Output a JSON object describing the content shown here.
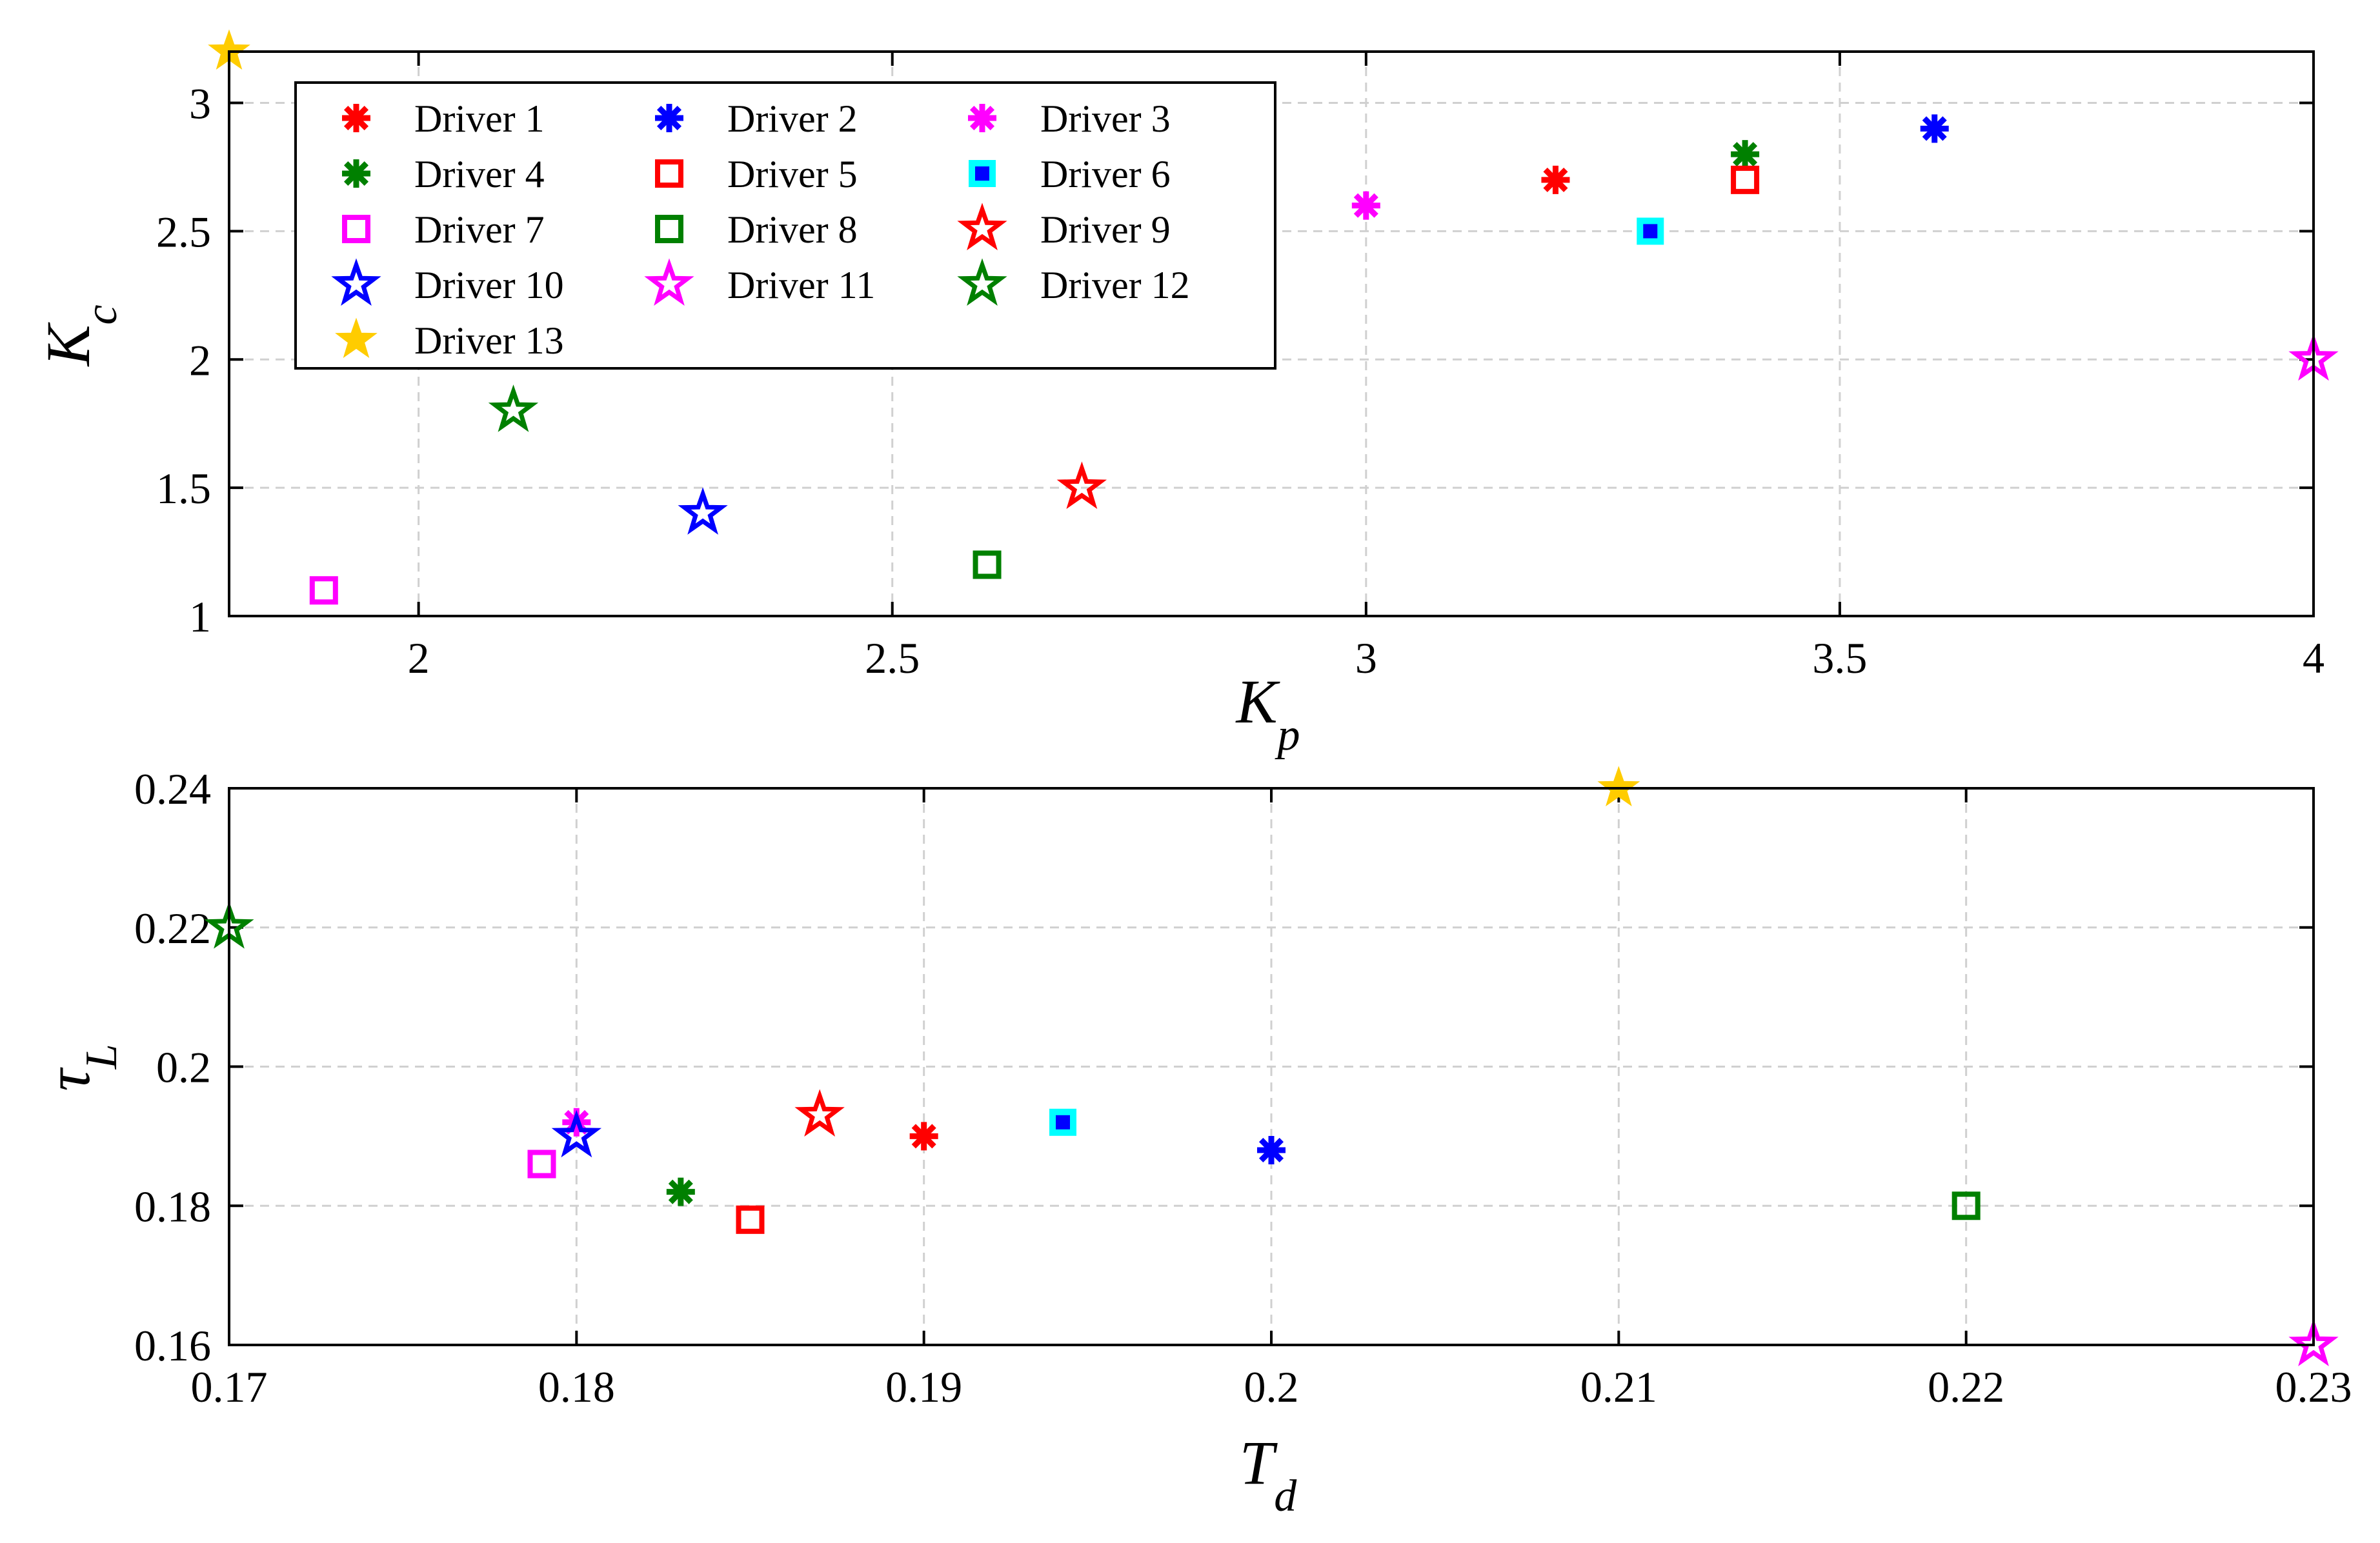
{
  "chart_data": [
    {
      "type": "scatter",
      "xlabel_main": "K",
      "xlabel_sub": "p",
      "ylabel_main": "K",
      "ylabel_sub": "c",
      "xlim": [
        1.8,
        4.0
      ],
      "ylim": [
        1.0,
        3.2
      ],
      "xticks": [
        "2",
        "2.5",
        "3",
        "3.5",
        "4"
      ],
      "xtick_values": [
        2,
        2.5,
        3,
        3.5,
        4
      ],
      "yticks": [
        "1",
        "1.5",
        "2",
        "2.5",
        "3"
      ],
      "ytick_values": [
        1,
        1.5,
        2,
        2.5,
        3
      ],
      "grid": true,
      "legend_position": "top-left",
      "points": [
        {
          "name": "Driver 1",
          "x": 3.2,
          "y": 2.7
        },
        {
          "name": "Driver 2",
          "x": 3.6,
          "y": 2.9
        },
        {
          "name": "Driver 3",
          "x": 3.0,
          "y": 2.6
        },
        {
          "name": "Driver 4",
          "x": 3.4,
          "y": 2.8
        },
        {
          "name": "Driver 5",
          "x": 3.4,
          "y": 2.7
        },
        {
          "name": "Driver 6",
          "x": 3.3,
          "y": 2.5
        },
        {
          "name": "Driver 7",
          "x": 1.9,
          "y": 1.1
        },
        {
          "name": "Driver 8",
          "x": 2.6,
          "y": 1.2
        },
        {
          "name": "Driver 9",
          "x": 2.7,
          "y": 1.5
        },
        {
          "name": "Driver 10",
          "x": 2.3,
          "y": 1.4
        },
        {
          "name": "Driver 11",
          "x": 4.0,
          "y": 2.0
        },
        {
          "name": "Driver 12",
          "x": 2.1,
          "y": 1.8
        },
        {
          "name": "Driver 13",
          "x": 1.8,
          "y": 3.2
        }
      ]
    },
    {
      "type": "scatter",
      "xlabel_main": "T",
      "xlabel_sub": "d",
      "ylabel_main": "τ",
      "ylabel_sub": "L",
      "xlim": [
        0.17,
        0.23
      ],
      "ylim": [
        0.16,
        0.24
      ],
      "xticks": [
        "0.17",
        "0.18",
        "0.19",
        "0.2",
        "0.21",
        "0.22",
        "0.23"
      ],
      "xtick_values": [
        0.17,
        0.18,
        0.19,
        0.2,
        0.21,
        0.22,
        0.23
      ],
      "yticks": [
        "0.16",
        "0.18",
        "0.2",
        "0.22",
        "0.24"
      ],
      "ytick_values": [
        0.16,
        0.18,
        0.2,
        0.22,
        0.24
      ],
      "grid": true,
      "points": [
        {
          "name": "Driver 1",
          "x": 0.19,
          "y": 0.19
        },
        {
          "name": "Driver 2",
          "x": 0.2,
          "y": 0.188
        },
        {
          "name": "Driver 3",
          "x": 0.18,
          "y": 0.192
        },
        {
          "name": "Driver 4",
          "x": 0.183,
          "y": 0.182
        },
        {
          "name": "Driver 5",
          "x": 0.185,
          "y": 0.178
        },
        {
          "name": "Driver 6",
          "x": 0.194,
          "y": 0.192
        },
        {
          "name": "Driver 7",
          "x": 0.179,
          "y": 0.186
        },
        {
          "name": "Driver 8",
          "x": 0.22,
          "y": 0.18
        },
        {
          "name": "Driver 9",
          "x": 0.187,
          "y": 0.193
        },
        {
          "name": "Driver 10",
          "x": 0.18,
          "y": 0.19
        },
        {
          "name": "Driver 11",
          "x": 0.23,
          "y": 0.16
        },
        {
          "name": "Driver 12",
          "x": 0.17,
          "y": 0.22
        },
        {
          "name": "Driver 13",
          "x": 0.21,
          "y": 0.24
        }
      ]
    }
  ],
  "legend": [
    {
      "label": "Driver 1",
      "marker": "asterisk",
      "color": "#ff0000"
    },
    {
      "label": "Driver 2",
      "marker": "asterisk",
      "color": "#0000ff"
    },
    {
      "label": "Driver 3",
      "marker": "asterisk",
      "color": "#ff00ff"
    },
    {
      "label": "Driver 4",
      "marker": "asterisk",
      "color": "#008000"
    },
    {
      "label": "Driver 5",
      "marker": "square",
      "color": "#ff0000"
    },
    {
      "label": "Driver 6",
      "marker": "filled-square",
      "color": "#0000ff",
      "fill": "#00ffff"
    },
    {
      "label": "Driver 7",
      "marker": "square",
      "color": "#ff00ff"
    },
    {
      "label": "Driver 8",
      "marker": "square",
      "color": "#008000"
    },
    {
      "label": "Driver 9",
      "marker": "star",
      "color": "#ff0000"
    },
    {
      "label": "Driver 10",
      "marker": "star",
      "color": "#0000ff"
    },
    {
      "label": "Driver 11",
      "marker": "star",
      "color": "#ff00ff"
    },
    {
      "label": "Driver 12",
      "marker": "star",
      "color": "#008000"
    },
    {
      "label": "Driver 13",
      "marker": "filled-star",
      "color": "#ffcc00"
    }
  ]
}
